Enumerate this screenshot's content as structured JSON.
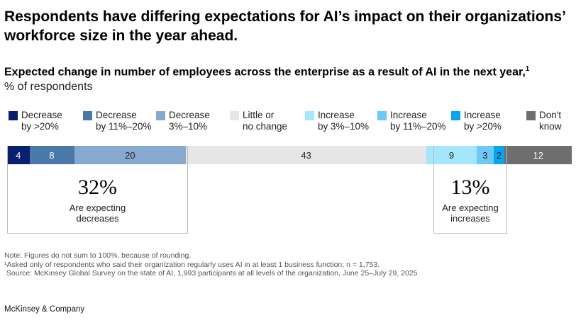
{
  "title": "Respondents have differing expectations for AI’s impact on their organizations’ workforce size in the year ahead.",
  "subtitle": "Expected change in number of employees across the enterprise as a result of AI in the next year,",
  "subtitle_footnote": "1",
  "unit": "% of respondents",
  "chart_data": {
    "type": "bar",
    "orientation": "horizontal-stacked-100",
    "legend_position": "top",
    "categories": [
      "Decrease by >20%",
      "Decrease by 11%–20%",
      "Decrease 3%–10%",
      "Little or no change",
      "Increase by 3%–10%",
      "Increase by 11%–20%",
      "Increase by >20%",
      "Don't know"
    ],
    "legend": [
      {
        "line1": "Decrease",
        "line2": "by >20%",
        "color": "#0a1f6e"
      },
      {
        "line1": "Decrease",
        "line2": "by 11%–20%",
        "color": "#4a78a8"
      },
      {
        "line1": "Decrease",
        "line2": "3%–10%",
        "color": "#87a9cf"
      },
      {
        "line1": "Little or",
        "line2": "no change",
        "color": "#e6e6e6"
      },
      {
        "line1": "Increase",
        "line2": "by 3%–10%",
        "color": "#a4e6fb"
      },
      {
        "line1": "Increase",
        "line2": "by 11%–20%",
        "color": "#6cc9f5"
      },
      {
        "line1": "Increase",
        "line2": "by >20%",
        "color": "#05a6ef"
      },
      {
        "line1": "Don't",
        "line2": "know",
        "color": "#6e6e6e"
      }
    ],
    "values": [
      4,
      8,
      20,
      43,
      9,
      3,
      2,
      12
    ],
    "labels": [
      "4",
      "8",
      "20",
      "43",
      "9",
      "3",
      "2",
      "12"
    ],
    "callouts": [
      {
        "value": "32%",
        "line1": "Are expecting",
        "line2": "decreases"
      },
      {
        "value": "13%",
        "line1": "Are expecting",
        "line2": "increases"
      }
    ]
  },
  "notes": [
    "Note: Figures do not sum to 100%, because of rounding.",
    "¹Asked only of respondents who said their organization regularly uses AI in at least 1 business function; n = 1,753.",
    " Source: McKinsey Global Survey on the state of AI, 1,993 participants at all levels of the organization, June 25–July 29, 2025"
  ],
  "brand": "McKinsey & Company"
}
